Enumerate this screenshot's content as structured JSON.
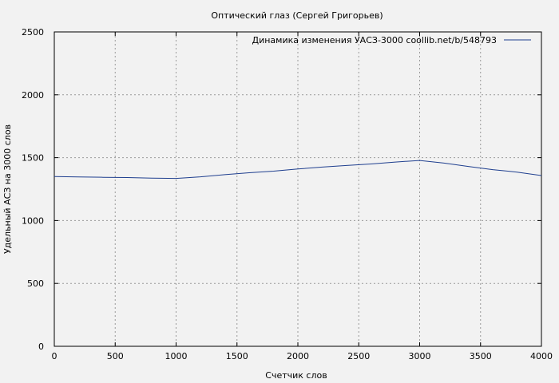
{
  "chart_data": {
    "type": "line",
    "title": "Оптический глаз (Сергей Григорьев)",
    "xlabel": "Счетчик слов",
    "ylabel": "Удельный АСЗ на 3000 слов",
    "xlim": [
      0,
      4000
    ],
    "ylim": [
      0,
      2500
    ],
    "x_ticks": [
      0,
      500,
      1000,
      1500,
      2000,
      2500,
      3000,
      3500,
      4000
    ],
    "y_ticks": [
      0,
      500,
      1000,
      1500,
      2000,
      2500
    ],
    "grid": true,
    "legend_position": "top-right",
    "series": [
      {
        "name": "Динамика изменения УАСЗ-3000  coollib.net/b/548793",
        "color": "#1f3f8f",
        "x": [
          0,
          200,
          400,
          600,
          800,
          1000,
          1200,
          1400,
          1600,
          1800,
          2000,
          2200,
          2400,
          2600,
          2800,
          3000,
          3200,
          3400,
          3600,
          3800,
          4000
        ],
        "y": [
          1350,
          1347,
          1344,
          1342,
          1337,
          1335,
          1348,
          1365,
          1380,
          1393,
          1410,
          1425,
          1438,
          1450,
          1465,
          1478,
          1457,
          1430,
          1405,
          1385,
          1358
        ]
      }
    ]
  }
}
